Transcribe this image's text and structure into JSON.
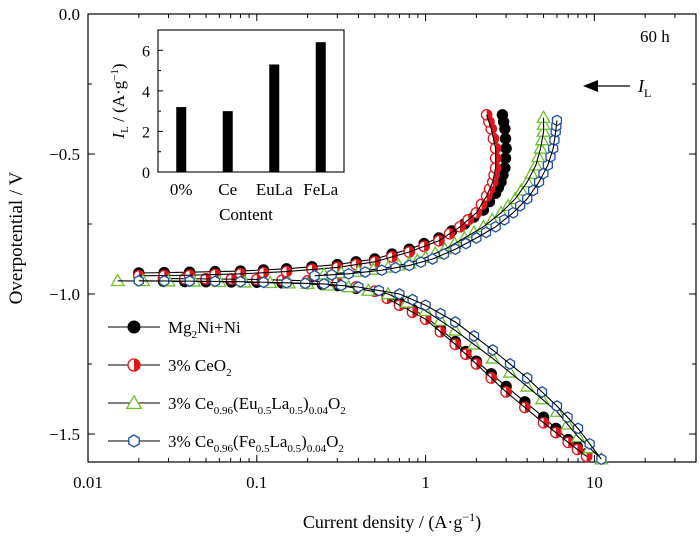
{
  "chart_data": [
    {
      "type": "line",
      "subtype": "tafel-polarization",
      "annotation_time": "60 h",
      "annotation_il": {
        "italic": "I",
        "sub": "L"
      },
      "xlabel": "Current density / (A·g",
      "xlabel_sup": "−1",
      "xlabel_close": ")",
      "ylabel": "Overpotential / V",
      "xscale": "log",
      "xlim": [
        0.01,
        40
      ],
      "ylim": [
        -1.6,
        0.0
      ],
      "xticks": [
        0.01,
        0.1,
        1,
        10
      ],
      "xtick_labels": [
        "0.01",
        "0.1",
        "1",
        "10"
      ],
      "yticks": [
        0.0,
        -0.5,
        -1.0,
        -1.5
      ],
      "ytick_labels": [
        "0.0",
        "−0.5",
        "−1.0",
        "−1.5"
      ],
      "grid": false,
      "legend_position": "bottom-left",
      "series": [
        {
          "name_parts": [
            [
              "Mg",
              ""
            ],
            [
              "2",
              "sub"
            ],
            [
              "Ni+Ni",
              ""
            ]
          ],
          "marker": "filled-circle",
          "color": "#000000",
          "cathodic": [
            [
              0.028,
              -0.955
            ],
            [
              0.05,
              -0.956
            ],
            [
              0.1,
              -0.958
            ],
            [
              0.2,
              -0.963
            ],
            [
              0.3,
              -0.97
            ],
            [
              0.5,
              -0.99
            ],
            [
              0.7,
              -1.03
            ],
            [
              1,
              -1.08
            ],
            [
              1.5,
              -1.17
            ],
            [
              2,
              -1.24
            ],
            [
              3,
              -1.33
            ],
            [
              5,
              -1.44
            ],
            [
              7,
              -1.52
            ],
            [
              9,
              -1.57
            ]
          ],
          "anodic": [
            [
              0.02,
              -0.925
            ],
            [
              0.04,
              -0.922
            ],
            [
              0.08,
              -0.918
            ],
            [
              0.15,
              -0.91
            ],
            [
              0.3,
              -0.895
            ],
            [
              0.5,
              -0.875
            ],
            [
              0.8,
              -0.84
            ],
            [
              1.2,
              -0.8
            ],
            [
              1.7,
              -0.75
            ],
            [
              2.2,
              -0.7
            ],
            [
              2.6,
              -0.64
            ],
            [
              2.8,
              -0.6
            ],
            [
              2.95,
              -0.55
            ],
            [
              3.0,
              -0.48
            ],
            [
              2.95,
              -0.41
            ],
            [
              2.85,
              -0.36
            ]
          ]
        },
        {
          "name_parts": [
            [
              "3% CeO",
              ""
            ],
            [
              "2",
              "sub"
            ]
          ],
          "marker": "half-filled-circle",
          "color": "#e0151b",
          "cathodic": [
            [
              0.028,
              -0.945
            ],
            [
              0.05,
              -0.946
            ],
            [
              0.1,
              -0.948
            ],
            [
              0.2,
              -0.953
            ],
            [
              0.3,
              -0.96
            ],
            [
              0.5,
              -0.99
            ],
            [
              0.7,
              -1.04
            ],
            [
              1,
              -1.09
            ],
            [
              1.5,
              -1.18
            ],
            [
              2,
              -1.25
            ],
            [
              3,
              -1.35
            ],
            [
              5,
              -1.46
            ],
            [
              7,
              -1.53
            ],
            [
              9,
              -1.58
            ]
          ],
          "anodic": [
            [
              0.02,
              -0.935
            ],
            [
              0.04,
              -0.933
            ],
            [
              0.08,
              -0.928
            ],
            [
              0.15,
              -0.92
            ],
            [
              0.3,
              -0.905
            ],
            [
              0.5,
              -0.885
            ],
            [
              0.8,
              -0.85
            ],
            [
              1.2,
              -0.81
            ],
            [
              1.6,
              -0.76
            ],
            [
              2.0,
              -0.71
            ],
            [
              2.3,
              -0.65
            ],
            [
              2.5,
              -0.6
            ],
            [
              2.6,
              -0.55
            ],
            [
              2.6,
              -0.48
            ],
            [
              2.45,
              -0.41
            ],
            [
              2.3,
              -0.36
            ]
          ]
        },
        {
          "name_parts": [
            [
              "3% Ce",
              ""
            ],
            [
              "0.96",
              "sub"
            ],
            [
              "(Eu",
              ""
            ],
            [
              "0.5",
              "sub"
            ],
            [
              "La",
              ""
            ],
            [
              "0.5",
              "sub"
            ],
            [
              ")",
              ""
            ],
            [
              "0.04",
              "sub"
            ],
            [
              "O",
              ""
            ],
            [
              "2",
              "sub"
            ]
          ],
          "marker": "open-triangle",
          "color": "#6cbf2a",
          "cathodic": [
            [
              0.015,
              -0.953
            ],
            [
              0.03,
              -0.954
            ],
            [
              0.06,
              -0.956
            ],
            [
              0.12,
              -0.96
            ],
            [
              0.2,
              -0.963
            ],
            [
              0.35,
              -0.975
            ],
            [
              0.6,
              -1.0
            ],
            [
              1,
              -1.06
            ],
            [
              1.5,
              -1.13
            ],
            [
              2.5,
              -1.23
            ],
            [
              4,
              -1.33
            ],
            [
              6,
              -1.42
            ],
            [
              8,
              -1.51
            ],
            [
              11,
              -1.59
            ]
          ],
          "anodic": [
            [
              0.25,
              -0.93
            ],
            [
              0.4,
              -0.92
            ],
            [
              0.6,
              -0.905
            ],
            [
              0.8,
              -0.89
            ],
            [
              1.0,
              -0.87
            ],
            [
              1.3,
              -0.84
            ],
            [
              1.7,
              -0.8
            ],
            [
              2.2,
              -0.76
            ],
            [
              2.8,
              -0.71
            ],
            [
              3.4,
              -0.66
            ],
            [
              4.0,
              -0.6
            ],
            [
              4.5,
              -0.54
            ],
            [
              4.8,
              -0.48
            ],
            [
              5.0,
              -0.42
            ],
            [
              5.0,
              -0.37
            ]
          ]
        },
        {
          "name_parts": [
            [
              "3% Ce",
              ""
            ],
            [
              "0.96",
              "sub"
            ],
            [
              "(Fe",
              ""
            ],
            [
              "0.5",
              "sub"
            ],
            [
              "La",
              ""
            ],
            [
              "0.5",
              "sub"
            ],
            [
              ")",
              ""
            ],
            [
              "0.04",
              "sub"
            ],
            [
              "O",
              ""
            ],
            [
              "2",
              "sub"
            ]
          ],
          "marker": "open-hexagon",
          "color": "#1f4fa8",
          "cathodic": [
            [
              0.02,
              -0.953
            ],
            [
              0.04,
              -0.954
            ],
            [
              0.08,
              -0.956
            ],
            [
              0.15,
              -0.96
            ],
            [
              0.25,
              -0.964
            ],
            [
              0.4,
              -0.975
            ],
            [
              0.7,
              -1.0
            ],
            [
              1,
              -1.04
            ],
            [
              1.5,
              -1.1
            ],
            [
              2.5,
              -1.2
            ],
            [
              4,
              -1.3
            ],
            [
              6,
              -1.4
            ],
            [
              8,
              -1.48
            ],
            [
              11,
              -1.59
            ]
          ],
          "anodic": [
            [
              0.22,
              -0.935
            ],
            [
              0.35,
              -0.928
            ],
            [
              0.55,
              -0.915
            ],
            [
              0.8,
              -0.898
            ],
            [
              1.1,
              -0.875
            ],
            [
              1.5,
              -0.84
            ],
            [
              2.0,
              -0.8
            ],
            [
              2.6,
              -0.76
            ],
            [
              3.3,
              -0.71
            ],
            [
              4.0,
              -0.66
            ],
            [
              4.7,
              -0.6
            ],
            [
              5.3,
              -0.54
            ],
            [
              5.7,
              -0.48
            ],
            [
              5.9,
              -0.42
            ],
            [
              6.0,
              -0.38
            ]
          ]
        }
      ]
    },
    {
      "type": "bar",
      "xlabel": "Content",
      "ylabel_italic": "I",
      "ylabel_sub": "L",
      "ylabel_rest": " / (A·g",
      "ylabel_sup": "−1",
      "ylabel_close": ")",
      "categories": [
        "0%",
        "Ce",
        "EuLa",
        "FeLa"
      ],
      "values": [
        3.2,
        3.0,
        5.3,
        6.4
      ],
      "ylim": [
        0,
        7
      ],
      "yticks": [
        0,
        2,
        4,
        6
      ],
      "ytick_labels": [
        "0",
        "2",
        "4",
        "6"
      ],
      "color": "#000000"
    }
  ]
}
